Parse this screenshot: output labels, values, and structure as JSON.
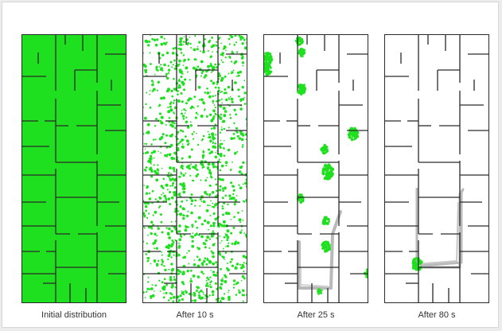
{
  "figure": {
    "panels": [
      {
        "caption": "Initial distribution",
        "state": "initial"
      },
      {
        "caption": "After 10 s",
        "state": "t10"
      },
      {
        "caption": "After 25 s",
        "state": "t25"
      },
      {
        "caption": "After 80 s",
        "state": "t80"
      }
    ]
  },
  "colors": {
    "particles": "#1fe01f",
    "walls": "#2a2a2a",
    "trajectory": "#b9b9b9",
    "background": "#ffffff"
  }
}
